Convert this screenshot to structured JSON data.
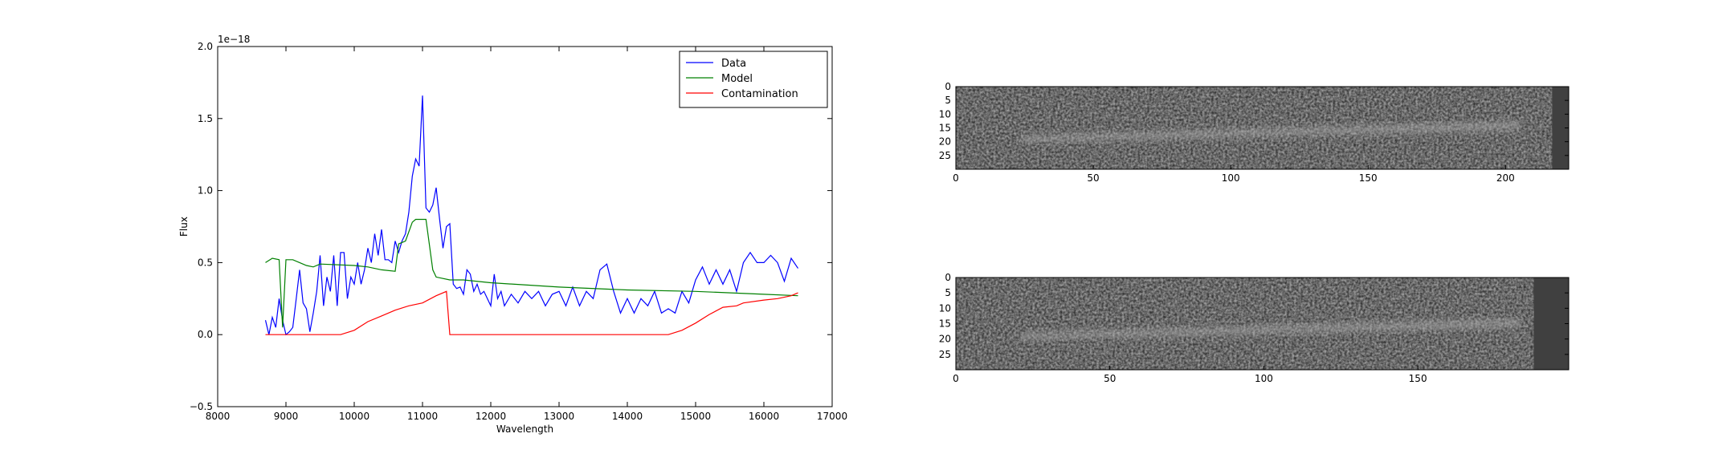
{
  "chart_data": [
    {
      "type": "line",
      "x_label": "Wavelength",
      "y_label": "Flux",
      "y_offset_label": "1e−18",
      "xlim": [
        8000,
        17000
      ],
      "ylim": [
        -0.5,
        2.0
      ],
      "xticks": [
        8000,
        9000,
        10000,
        11000,
        12000,
        13000,
        14000,
        15000,
        16000,
        17000
      ],
      "yticks": [
        {
          "value": -0.5,
          "label": "−0.5"
        },
        {
          "value": 0,
          "label": "0.0"
        },
        0.5,
        {
          "value": 1,
          "label": "1.0"
        },
        1.5,
        {
          "value": 2,
          "label": "2.0"
        }
      ],
      "legend": "upper right",
      "series": [
        {
          "name": "Data",
          "color": "#0000ff",
          "x": [
            8700,
            8750,
            8800,
            8850,
            8900,
            8950,
            9000,
            9050,
            9100,
            9150,
            9200,
            9250,
            9300,
            9350,
            9400,
            9450,
            9500,
            9550,
            9600,
            9650,
            9700,
            9750,
            9800,
            9850,
            9900,
            9950,
            10000,
            10050,
            10100,
            10150,
            10200,
            10250,
            10300,
            10350,
            10400,
            10450,
            10500,
            10550,
            10600,
            10650,
            10700,
            10750,
            10800,
            10850,
            10900,
            10950,
            11000,
            11050,
            11100,
            11150,
            11200,
            11250,
            11300,
            11350,
            11400,
            11450,
            11500,
            11550,
            11600,
            11650,
            11700,
            11750,
            11800,
            11850,
            11900,
            12000,
            12050,
            12100,
            12150,
            12200,
            12300,
            12400,
            12500,
            12600,
            12700,
            12800,
            12900,
            13000,
            13100,
            13200,
            13300,
            13400,
            13500,
            13600,
            13700,
            13800,
            13900,
            14000,
            14100,
            14200,
            14300,
            14400,
            14500,
            14600,
            14700,
            14800,
            14900,
            15000,
            15100,
            15200,
            15300,
            15400,
            15500,
            15600,
            15700,
            15800,
            15900,
            16000,
            16100,
            16200,
            16300,
            16400,
            16500
          ],
          "values": [
            0.1,
            0.0,
            0.12,
            0.05,
            0.25,
            0.1,
            0.0,
            0.02,
            0.05,
            0.25,
            0.45,
            0.22,
            0.18,
            0.02,
            0.15,
            0.3,
            0.55,
            0.2,
            0.4,
            0.3,
            0.55,
            0.2,
            0.57,
            0.57,
            0.25,
            0.4,
            0.35,
            0.5,
            0.35,
            0.45,
            0.6,
            0.5,
            0.7,
            0.55,
            0.73,
            0.52,
            0.52,
            0.5,
            0.65,
            0.57,
            0.65,
            0.7,
            0.85,
            1.1,
            1.22,
            1.17,
            1.66,
            0.88,
            0.85,
            0.9,
            1.02,
            0.8,
            0.6,
            0.75,
            0.77,
            0.35,
            0.32,
            0.33,
            0.28,
            0.45,
            0.42,
            0.3,
            0.35,
            0.28,
            0.3,
            0.2,
            0.42,
            0.25,
            0.3,
            0.2,
            0.28,
            0.22,
            0.3,
            0.25,
            0.3,
            0.2,
            0.28,
            0.3,
            0.2,
            0.33,
            0.2,
            0.3,
            0.25,
            0.45,
            0.49,
            0.3,
            0.15,
            0.25,
            0.15,
            0.25,
            0.2,
            0.3,
            0.15,
            0.18,
            0.15,
            0.3,
            0.22,
            0.38,
            0.47,
            0.35,
            0.45,
            0.35,
            0.45,
            0.3,
            0.5,
            0.57,
            0.5,
            0.5,
            0.55,
            0.5,
            0.37,
            0.53,
            0.46
          ]
        },
        {
          "name": "Model",
          "color": "#008000",
          "x": [
            8700,
            8800,
            8900,
            8950,
            9000,
            9100,
            9200,
            9300,
            9400,
            9500,
            10000,
            10200,
            10400,
            10600,
            10650,
            10750,
            10850,
            10900,
            11050,
            11150,
            11200,
            11400,
            11600,
            12000,
            13000,
            14000,
            15000,
            16000,
            16500
          ],
          "values": [
            0.5,
            0.53,
            0.52,
            0.05,
            0.52,
            0.52,
            0.5,
            0.48,
            0.47,
            0.49,
            0.48,
            0.47,
            0.45,
            0.44,
            0.63,
            0.65,
            0.78,
            0.8,
            0.8,
            0.45,
            0.4,
            0.38,
            0.38,
            0.36,
            0.33,
            0.31,
            0.3,
            0.28,
            0.27
          ]
        },
        {
          "name": "Contamination",
          "color": "#ff0000",
          "x": [
            8700,
            9800,
            10000,
            10200,
            10400,
            10600,
            10800,
            11000,
            11200,
            11350,
            11400,
            14600,
            14800,
            15000,
            15200,
            15400,
            15600,
            15700,
            16000,
            16200,
            16400,
            16500
          ],
          "values": [
            0,
            0,
            0.03,
            0.09,
            0.13,
            0.17,
            0.2,
            0.22,
            0.27,
            0.3,
            0,
            0,
            0.03,
            0.08,
            0.14,
            0.19,
            0.2,
            0.22,
            0.24,
            0.25,
            0.27,
            0.29
          ]
        }
      ]
    },
    {
      "type": "image",
      "xlim": [
        0,
        223
      ],
      "ylim": [
        30,
        0
      ],
      "xticks": [
        0,
        50,
        100,
        150,
        200
      ],
      "yticks": [
        0,
        5,
        10,
        15,
        20,
        25
      ]
    },
    {
      "type": "image",
      "xlim": [
        0,
        199
      ],
      "ylim": [
        30,
        0
      ],
      "xticks": [
        0,
        50,
        100,
        150
      ],
      "yticks": [
        0,
        5,
        10,
        15,
        20,
        25
      ]
    }
  ]
}
